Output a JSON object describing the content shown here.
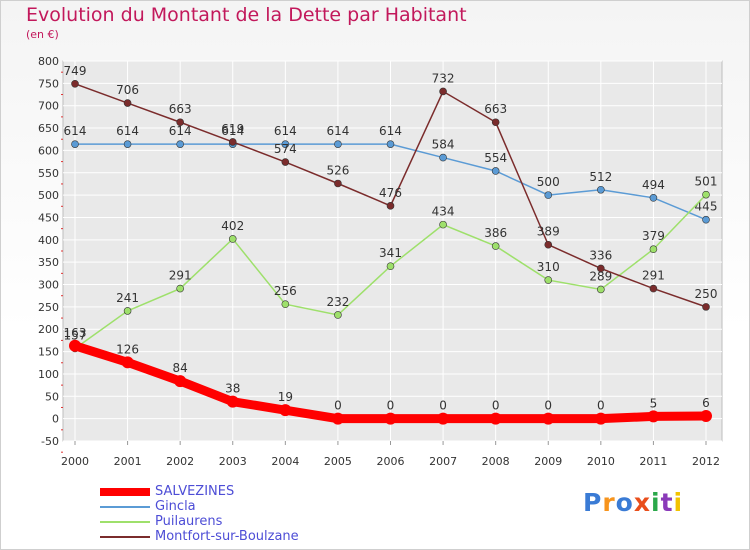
{
  "chart_data": {
    "type": "line",
    "title": "Evolution du Montant de la Dette par Habitant",
    "subtitle": "(en €)",
    "xlabel": "",
    "ylabel": "",
    "ylim": [
      -50,
      800
    ],
    "yticks": [
      -50,
      0,
      50,
      100,
      150,
      200,
      250,
      300,
      350,
      400,
      450,
      500,
      550,
      600,
      650,
      700,
      750,
      800
    ],
    "categories": [
      "2000",
      "2001",
      "2002",
      "2003",
      "2004",
      "2005",
      "2006",
      "2007",
      "2008",
      "2009",
      "2010",
      "2011",
      "2012"
    ],
    "grid": true,
    "legend_position": "bottom-left",
    "series": [
      {
        "name": "Gincla",
        "color": "#5b9bd5",
        "values": [
          614,
          614,
          614,
          614,
          614,
          614,
          614,
          584,
          554,
          500,
          512,
          494,
          445
        ]
      },
      {
        "name": "Puilaurens",
        "color": "#9ee06b",
        "values": [
          157,
          241,
          291,
          402,
          256,
          232,
          341,
          434,
          386,
          310,
          289,
          379,
          501
        ]
      },
      {
        "name": "Montfort-sur-Boulzane",
        "color": "#7b2c2c",
        "values": [
          749,
          706,
          663,
          619,
          574,
          526,
          476,
          732,
          663,
          389,
          336,
          291,
          250
        ]
      },
      {
        "name": "SALVEZINES",
        "color": "#ff0000",
        "values": [
          163,
          126,
          84,
          38,
          19,
          0,
          0,
          0,
          0,
          0,
          0,
          5,
          6
        ],
        "thick": true
      }
    ]
  },
  "legend": {
    "items": [
      "SALVEZINES",
      "Gincla",
      "Puilaurens",
      "Montfort-sur-Boulzane"
    ],
    "colors": [
      "#ff0000",
      "#5b9bd5",
      "#9ee06b",
      "#7b2c2c"
    ]
  },
  "logo": {
    "text": "Proxiti",
    "colors": [
      "#3a7bd5",
      "#f7941d",
      "#3a7bd5",
      "#e94e1b",
      "#2aa84a",
      "#8a3ab9",
      "#f2c200"
    ]
  }
}
